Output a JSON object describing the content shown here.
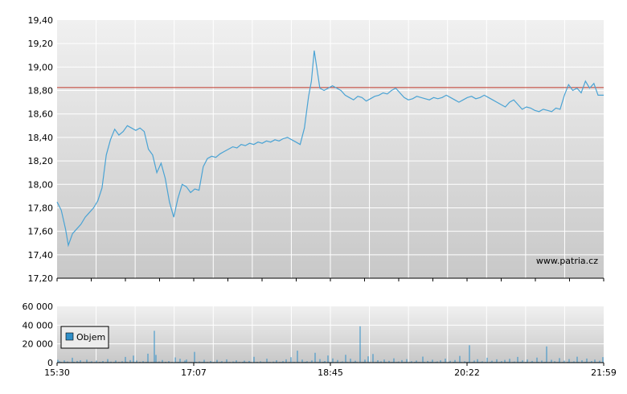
{
  "colors": {
    "price_line": "#4aa3d4",
    "reference_line": "#c0392b",
    "volume_bars": "#2f8fc8",
    "grid": "#ffffff",
    "plot_top": "#f0f0f0",
    "plot_bottom": "#c8c8c8",
    "axis": "#000000"
  },
  "watermark": "www.patria.cz",
  "chart_data": [
    {
      "type": "line",
      "name": "price",
      "y_ticks": [
        "19,40",
        "19,20",
        "19,00",
        "18,80",
        "18,60",
        "18,40",
        "18,20",
        "18,00",
        "17,80",
        "17,60",
        "17,40",
        "17,20"
      ],
      "ylim": [
        17.2,
        19.4
      ],
      "xlim": [
        "15:30",
        "21:59"
      ],
      "grid": true,
      "reference_line": 18.825,
      "points": [
        [
          "15:30",
          17.85
        ],
        [
          "15:33",
          17.78
        ],
        [
          "15:36",
          17.62
        ],
        [
          "15:38",
          17.48
        ],
        [
          "15:41",
          17.58
        ],
        [
          "15:44",
          17.62
        ],
        [
          "15:47",
          17.66
        ],
        [
          "15:50",
          17.72
        ],
        [
          "15:53",
          17.76
        ],
        [
          "15:56",
          17.8
        ],
        [
          "15:59",
          17.86
        ],
        [
          "16:02",
          17.97
        ],
        [
          "16:05",
          18.25
        ],
        [
          "16:08",
          18.38
        ],
        [
          "16:11",
          18.47
        ],
        [
          "16:14",
          18.42
        ],
        [
          "16:17",
          18.45
        ],
        [
          "16:20",
          18.5
        ],
        [
          "16:23",
          18.48
        ],
        [
          "16:26",
          18.46
        ],
        [
          "16:29",
          18.48
        ],
        [
          "16:32",
          18.45
        ],
        [
          "16:35",
          18.3
        ],
        [
          "16:38",
          18.25
        ],
        [
          "16:41",
          18.1
        ],
        [
          "16:44",
          18.18
        ],
        [
          "16:47",
          18.05
        ],
        [
          "16:50",
          17.85
        ],
        [
          "16:53",
          17.72
        ],
        [
          "16:56",
          17.88
        ],
        [
          "16:59",
          18.0
        ],
        [
          "17:02",
          17.98
        ],
        [
          "17:05",
          17.93
        ],
        [
          "17:08",
          17.96
        ],
        [
          "17:11",
          17.95
        ],
        [
          "17:14",
          18.15
        ],
        [
          "17:17",
          18.22
        ],
        [
          "17:20",
          18.24
        ],
        [
          "17:23",
          18.23
        ],
        [
          "17:26",
          18.26
        ],
        [
          "17:29",
          18.28
        ],
        [
          "17:32",
          18.3
        ],
        [
          "17:35",
          18.32
        ],
        [
          "17:38",
          18.31
        ],
        [
          "17:41",
          18.34
        ],
        [
          "17:44",
          18.33
        ],
        [
          "17:47",
          18.35
        ],
        [
          "17:50",
          18.34
        ],
        [
          "17:53",
          18.36
        ],
        [
          "17:56",
          18.35
        ],
        [
          "17:59",
          18.37
        ],
        [
          "18:02",
          18.36
        ],
        [
          "18:05",
          18.38
        ],
        [
          "18:08",
          18.37
        ],
        [
          "18:11",
          18.39
        ],
        [
          "18:14",
          18.4
        ],
        [
          "18:17",
          18.38
        ],
        [
          "18:20",
          18.36
        ],
        [
          "18:23",
          18.34
        ],
        [
          "18:26",
          18.48
        ],
        [
          "18:29",
          18.75
        ],
        [
          "18:31",
          18.88
        ],
        [
          "18:33",
          19.14
        ],
        [
          "18:35",
          18.98
        ],
        [
          "18:37",
          18.82
        ],
        [
          "18:40",
          18.8
        ],
        [
          "18:43",
          18.82
        ],
        [
          "18:46",
          18.84
        ],
        [
          "18:49",
          18.82
        ],
        [
          "18:52",
          18.8
        ],
        [
          "18:55",
          18.76
        ],
        [
          "18:58",
          18.74
        ],
        [
          "19:01",
          18.72
        ],
        [
          "19:04",
          18.75
        ],
        [
          "19:07",
          18.74
        ],
        [
          "19:10",
          18.71
        ],
        [
          "19:13",
          18.73
        ],
        [
          "19:16",
          18.75
        ],
        [
          "19:19",
          18.76
        ],
        [
          "19:22",
          18.78
        ],
        [
          "19:25",
          18.77
        ],
        [
          "19:28",
          18.8
        ],
        [
          "19:31",
          18.82
        ],
        [
          "19:34",
          18.78
        ],
        [
          "19:37",
          18.74
        ],
        [
          "19:40",
          18.72
        ],
        [
          "19:43",
          18.73
        ],
        [
          "19:46",
          18.75
        ],
        [
          "19:49",
          18.74
        ],
        [
          "19:52",
          18.73
        ],
        [
          "19:55",
          18.72
        ],
        [
          "19:58",
          18.74
        ],
        [
          "20:01",
          18.73
        ],
        [
          "20:04",
          18.74
        ],
        [
          "20:07",
          18.76
        ],
        [
          "20:10",
          18.74
        ],
        [
          "20:13",
          18.72
        ],
        [
          "20:16",
          18.7
        ],
        [
          "20:19",
          18.72
        ],
        [
          "20:22",
          18.74
        ],
        [
          "20:25",
          18.75
        ],
        [
          "20:28",
          18.73
        ],
        [
          "20:31",
          18.74
        ],
        [
          "20:34",
          18.76
        ],
        [
          "20:37",
          18.74
        ],
        [
          "20:40",
          18.72
        ],
        [
          "20:43",
          18.7
        ],
        [
          "20:46",
          18.68
        ],
        [
          "20:49",
          18.66
        ],
        [
          "20:52",
          18.7
        ],
        [
          "20:55",
          18.72
        ],
        [
          "20:58",
          18.68
        ],
        [
          "21:01",
          18.64
        ],
        [
          "21:04",
          18.66
        ],
        [
          "21:07",
          18.65
        ],
        [
          "21:10",
          18.63
        ],
        [
          "21:13",
          18.62
        ],
        [
          "21:16",
          18.64
        ],
        [
          "21:19",
          18.63
        ],
        [
          "21:22",
          18.62
        ],
        [
          "21:25",
          18.65
        ],
        [
          "21:28",
          18.64
        ],
        [
          "21:31",
          18.76
        ],
        [
          "21:34",
          18.85
        ],
        [
          "21:37",
          18.8
        ],
        [
          "21:40",
          18.82
        ],
        [
          "21:43",
          18.78
        ],
        [
          "21:46",
          18.88
        ],
        [
          "21:49",
          18.82
        ],
        [
          "21:52",
          18.86
        ],
        [
          "21:55",
          18.76
        ],
        [
          "21:59",
          18.76
        ]
      ]
    },
    {
      "type": "bar",
      "name": "Objem",
      "y_ticks": [
        "60 000",
        "40 000",
        "20 000",
        "0"
      ],
      "ylim": [
        0,
        60000
      ],
      "x_ticks": [
        "15:30",
        "17:07",
        "18:45",
        "20:22",
        "21:59"
      ],
      "xlim": [
        "15:30",
        "21:59"
      ],
      "grid": true,
      "legend": "top-left",
      "series": [
        {
          "name": "Objem",
          "values": [
            3000,
            1500,
            800,
            400,
            2500,
            600,
            1200,
            500,
            300,
            5200,
            900,
            400,
            1800,
            600,
            2600,
            400,
            700,
            300,
            3100,
            500,
            800,
            1400,
            400,
            600,
            2200,
            300,
            900,
            500,
            1700,
            400,
            600,
            3800,
            500,
            1100,
            300,
            800,
            2400,
            400,
            700,
            500,
            1500,
            300,
            6100,
            800,
            400,
            2700,
            500,
            7500,
            600,
            2300,
            400,
            900,
            300,
            1600,
            500,
            800,
            9500,
            400,
            700,
            600,
            34000,
            8200,
            600,
            1200,
            500,
            2800,
            400,
            900,
            300,
            1600,
            500,
            700,
            400,
            5600,
            600,
            900,
            4100,
            500,
            700,
            2200,
            3300,
            400,
            600,
            800,
            500,
            11500,
            900,
            400,
            1300,
            600,
            800,
            3000,
            500,
            700,
            400,
            1700,
            600,
            900,
            500,
            2900,
            400,
            700,
            1500,
            300,
            600,
            3400,
            500,
            800,
            400,
            1200,
            600,
            2500,
            500,
            700,
            400,
            900,
            2100,
            600,
            500,
            1800,
            700,
            400,
            6200,
            500,
            900,
            300,
            1400,
            600,
            800,
            500,
            4200,
            600,
            700,
            400,
            1100,
            500,
            2600,
            400,
            800,
            600,
            1600,
            500,
            3500,
            400,
            700,
            5800,
            600,
            900,
            500,
            12800,
            700,
            400,
            3200,
            600,
            900,
            1500,
            500,
            700,
            2400,
            400,
            10500,
            600,
            800,
            3800,
            500,
            900,
            1700,
            400,
            7600,
            600,
            800,
            4500,
            500,
            700,
            2800,
            400,
            900,
            1300,
            500,
            8400,
            700,
            500,
            4200,
            600,
            900,
            2000,
            700,
            400,
            38800,
            600,
            900,
            3200,
            500,
            6800,
            700,
            400,
            9200,
            500,
            800,
            2600,
            600,
            1400,
            400,
            3300,
            700,
            500,
            1900,
            600,
            800,
            4600,
            500,
            700,
            1200,
            400,
            2700,
            600,
            800,
            3800,
            500,
            700,
            1500,
            400,
            900,
            2200,
            600,
            800,
            500,
            6400,
            700,
            400,
            1800,
            600,
            900,
            3100,
            500,
            700,
            1300,
            400,
            2500,
            600,
            800,
            4300,
            500,
            700,
            1900,
            400,
            900,
            2800,
            600,
            500,
            7200,
            700,
            400,
            1500,
            600,
            900,
            18500,
            500,
            700,
            2300,
            400,
            3600,
            600,
            800,
            1400,
            500,
            700,
            5200,
            400,
            900,
            2000,
            600,
            800,
            3500,
            500,
            700,
            1600,
            400,
            2900,
            600,
            800,
            4100,
            500,
            700,
            1200,
            400,
            6100,
            600,
            900,
            2400,
            500,
            700,
            3300,
            400,
            800,
            1800,
            600,
            500,
            5400,
            700,
            400,
            2200,
            600,
            900,
            17200,
            500,
            700,
            3000,
            400,
            1500,
            600,
            800,
            4800,
            500,
            700,
            2100,
            400,
            900,
            3800,
            600,
            800,
            1400,
            500,
            6300,
            700,
            400,
            2500,
            600,
            900,
            4400,
            500,
            700,
            1700,
            400,
            3200,
            600,
            800,
            2000,
            500,
            5900
          ]
        }
      ]
    }
  ]
}
